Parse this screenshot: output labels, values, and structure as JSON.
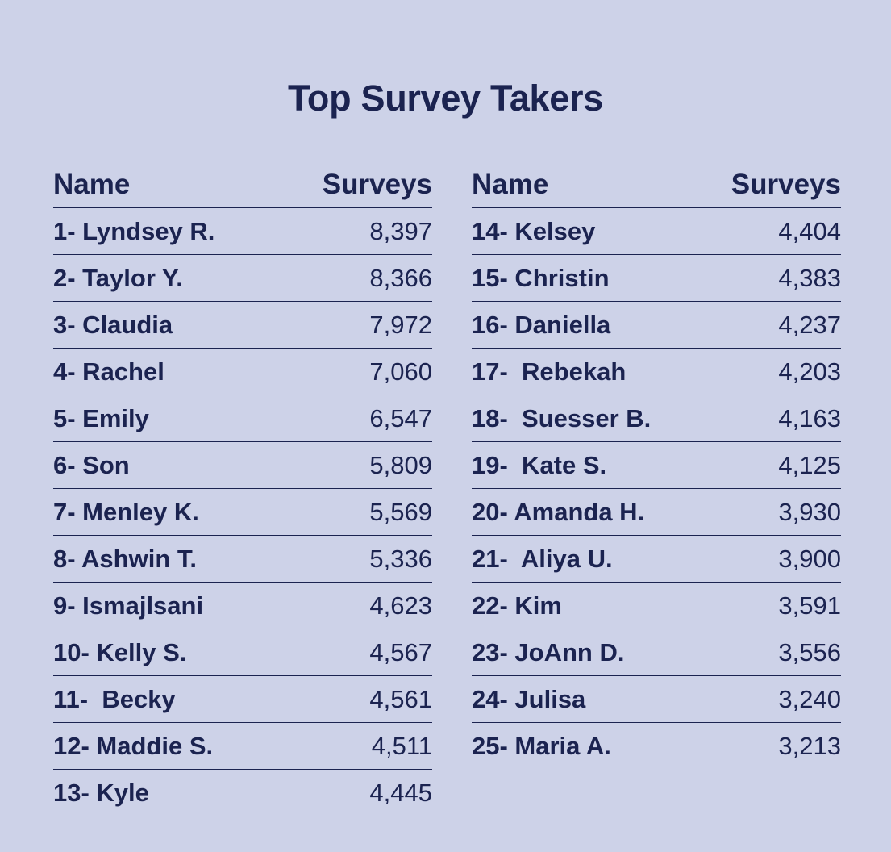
{
  "chart_data": {
    "type": "table",
    "title": "Top Survey Takers",
    "columns": [
      {
        "headers": [
          "Name",
          "Surveys"
        ],
        "rows": [
          {
            "name": "1- Lyndsey R.",
            "surveys": "8,397"
          },
          {
            "name": "2- Taylor Y.",
            "surveys": "8,366"
          },
          {
            "name": "3- Claudia",
            "surveys": "7,972"
          },
          {
            "name": "4- Rachel",
            "surveys": "7,060"
          },
          {
            "name": "5- Emily",
            "surveys": "6,547"
          },
          {
            "name": "6- Son",
            "surveys": "5,809"
          },
          {
            "name": "7- Menley K.",
            "surveys": "5,569"
          },
          {
            "name": "8- Ashwin T.",
            "surveys": "5,336"
          },
          {
            "name": "9- Ismajlsani",
            "surveys": "4,623"
          },
          {
            "name": "10- Kelly S.",
            "surveys": "4,567"
          },
          {
            "name": "11-  Becky",
            "surveys": "4,561"
          },
          {
            "name": "12- Maddie S.",
            "surveys": "4,511"
          },
          {
            "name": "13- Kyle",
            "surveys": "4,445"
          }
        ]
      },
      {
        "headers": [
          "Name",
          "Surveys"
        ],
        "rows": [
          {
            "name": "14- Kelsey",
            "surveys": "4,404"
          },
          {
            "name": "15- Christin",
            "surveys": "4,383"
          },
          {
            "name": "16- Daniella",
            "surveys": "4,237"
          },
          {
            "name": "17-  Rebekah",
            "surveys": "4,203"
          },
          {
            "name": "18-  Suesser B.",
            "surveys": "4,163"
          },
          {
            "name": "19-  Kate S.",
            "surveys": "4,125"
          },
          {
            "name": "20- Amanda H.",
            "surveys": "3,930"
          },
          {
            "name": "21-  Aliya U.",
            "surveys": "3,900"
          },
          {
            "name": "22- Kim",
            "surveys": "3,591"
          },
          {
            "name": "23- JoAnn D.",
            "surveys": "3,556"
          },
          {
            "name": "24- Julisa",
            "surveys": "3,240"
          },
          {
            "name": "25- Maria A.",
            "surveys": "3,213"
          }
        ]
      }
    ]
  },
  "colors": {
    "background": "#cdd2e8",
    "text": "#1b2350"
  }
}
